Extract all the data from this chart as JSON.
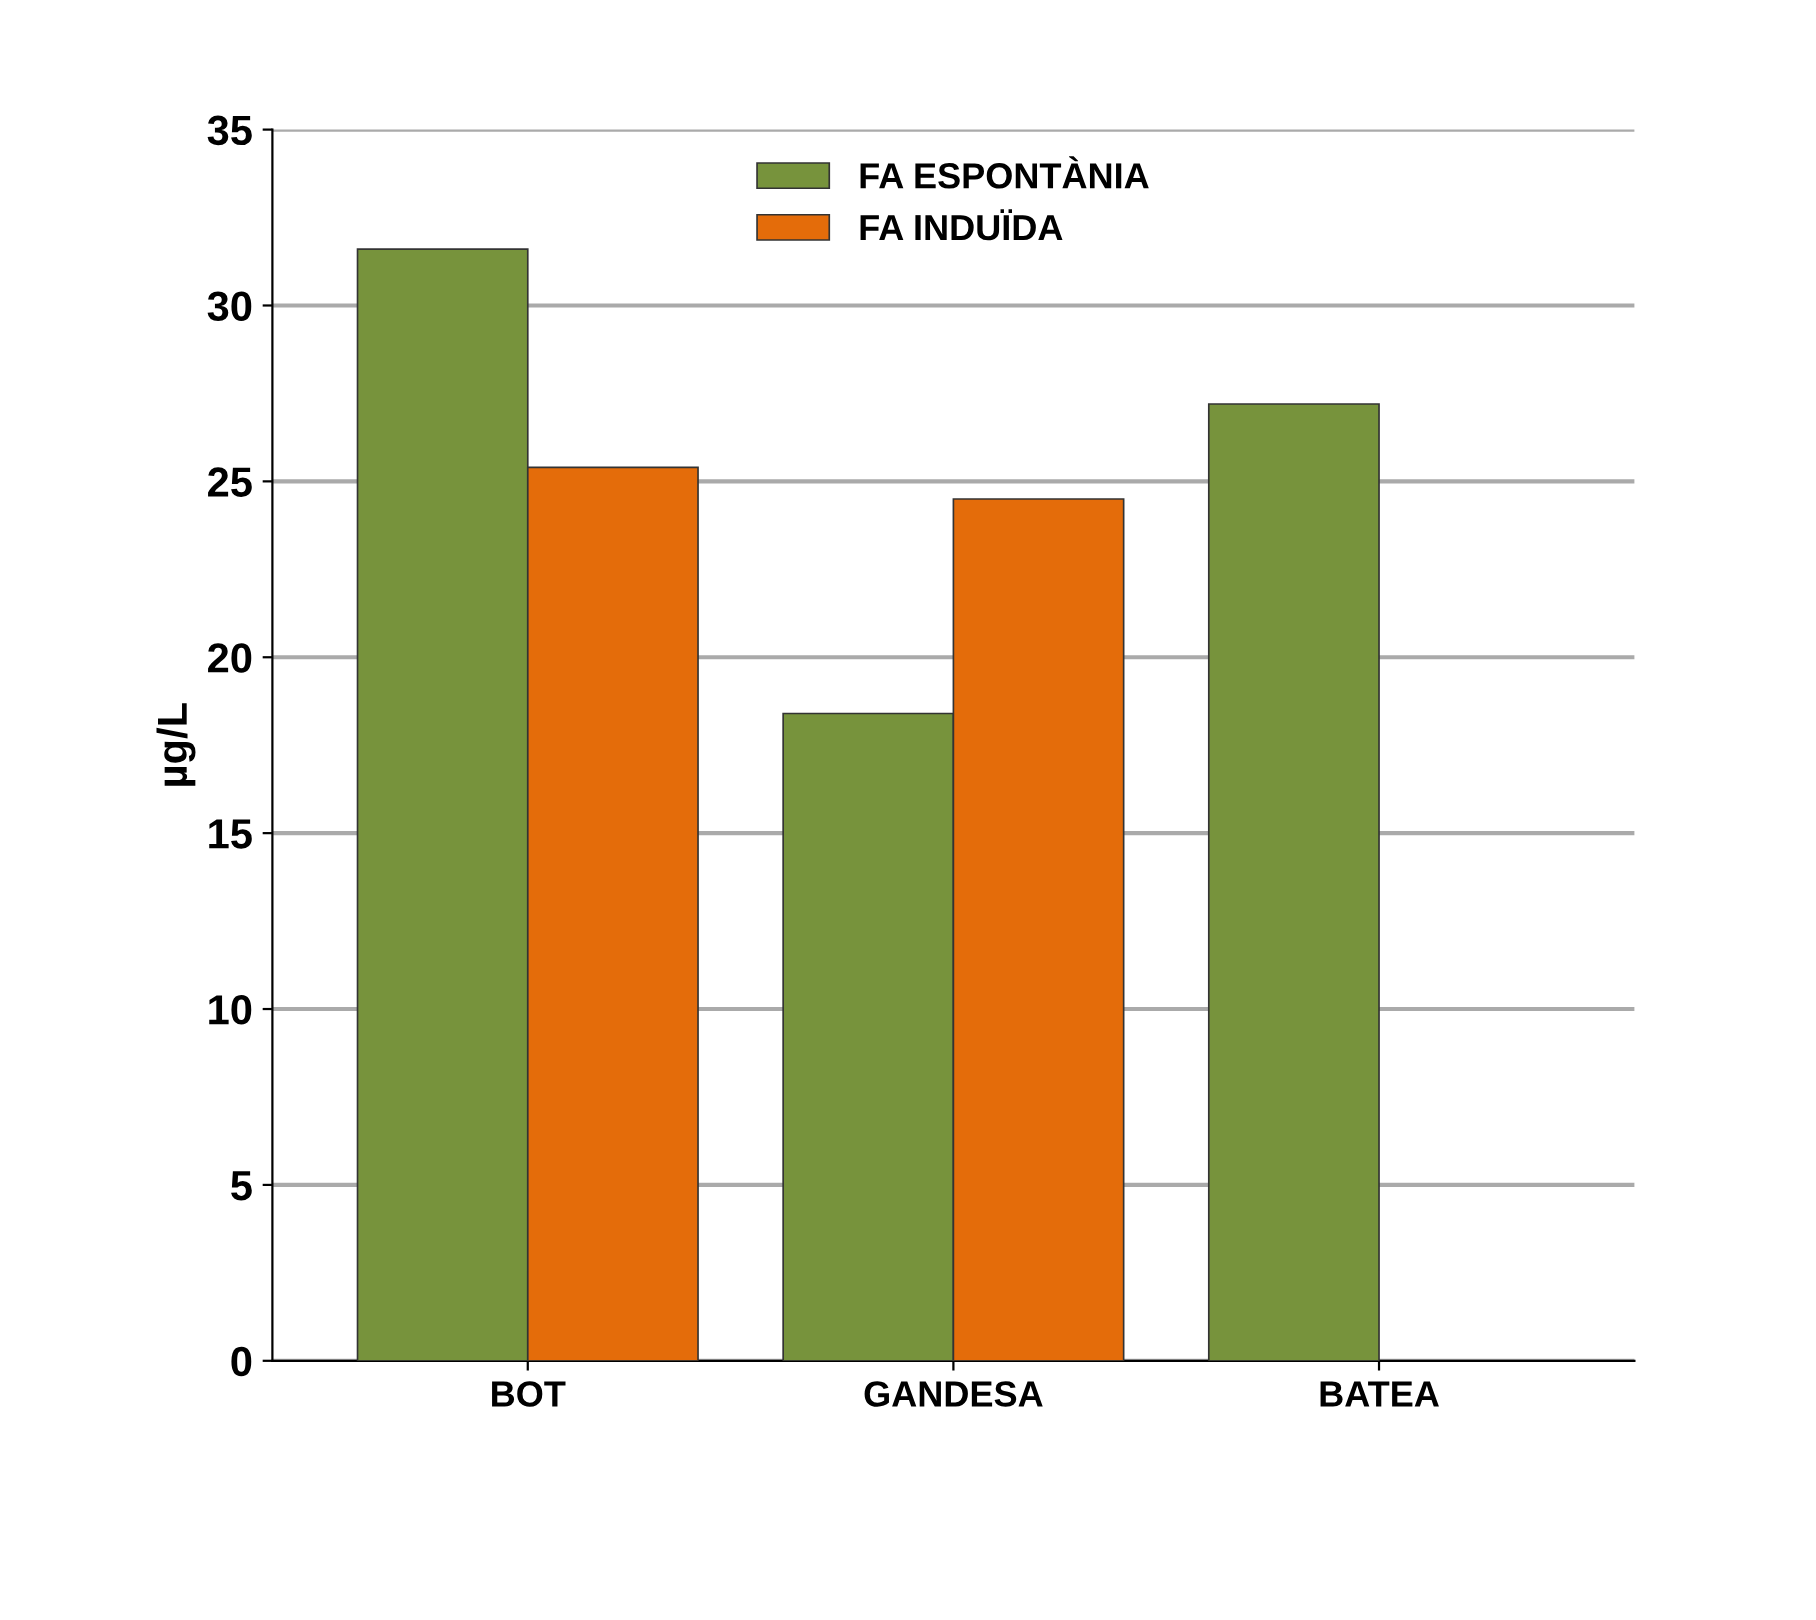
{
  "chart_data": {
    "type": "bar",
    "ylabel": "µg/L",
    "categories": [
      "BOT",
      "GANDESA",
      "BATEA"
    ],
    "series": [
      {
        "name": "FA ESPONTÀNIA",
        "color": "#77933c",
        "values": [
          31.6,
          18.4,
          27.2
        ]
      },
      {
        "name": "FA INDUÏDA",
        "color": "#e46c0a",
        "values": [
          25.4,
          24.5,
          null
        ]
      }
    ],
    "ylim": [
      0,
      35
    ],
    "yticks": [
      0,
      5,
      10,
      15,
      20,
      25,
      30,
      35
    ],
    "grid": "y",
    "legend": "top"
  }
}
